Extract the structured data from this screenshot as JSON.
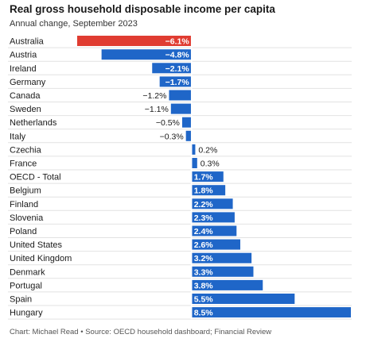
{
  "header": {
    "title": "Real gross household disposable income per capita",
    "subtitle": "Annual change, September 2023"
  },
  "footer": {
    "credit": "Chart: Michael Read • Source: OECD household dashboard; Financial Review"
  },
  "colors": {
    "negative_highlight": "#e03c31",
    "bar": "#1f66c8",
    "row_divider": "#e2e2e2",
    "label_text": "#1a1a1a",
    "value_text_inside": "#ffffff"
  },
  "chart_data": {
    "type": "bar",
    "orientation": "horizontal",
    "title": "Real gross household disposable income per capita",
    "subtitle": "Annual change, September 2023",
    "value_suffix": "%",
    "categories": [
      "Australia",
      "Austria",
      "Ireland",
      "Germany",
      "Canada",
      "Sweden",
      "Netherlands",
      "Italy",
      "Czechia",
      "France",
      "OECD - Total",
      "Belgium",
      "Finland",
      "Slovenia",
      "Poland",
      "United States",
      "United Kingdom",
      "Denmark",
      "Portugal",
      "Spain",
      "Hungary"
    ],
    "values": [
      -6.1,
      -4.8,
      -2.1,
      -1.7,
      -1.2,
      -1.1,
      -0.5,
      -0.3,
      0.2,
      0.3,
      1.7,
      1.8,
      2.2,
      2.3,
      2.4,
      2.6,
      3.2,
      3.3,
      3.8,
      5.5,
      8.5
    ],
    "value_labels": [
      "−6.1%",
      "−4.8%",
      "−2.1%",
      "−1.7%",
      "−1.2%",
      "−1.1%",
      "−0.5%",
      "−0.3%",
      "0.2%",
      "0.3%",
      "1.7%",
      "1.8%",
      "2.2%",
      "2.3%",
      "2.4%",
      "2.6%",
      "3.2%",
      "3.3%",
      "3.8%",
      "5.5%",
      "8.5%"
    ],
    "highlight": "Australia",
    "xlim": [
      -6.1,
      8.5
    ],
    "grid": false
  }
}
